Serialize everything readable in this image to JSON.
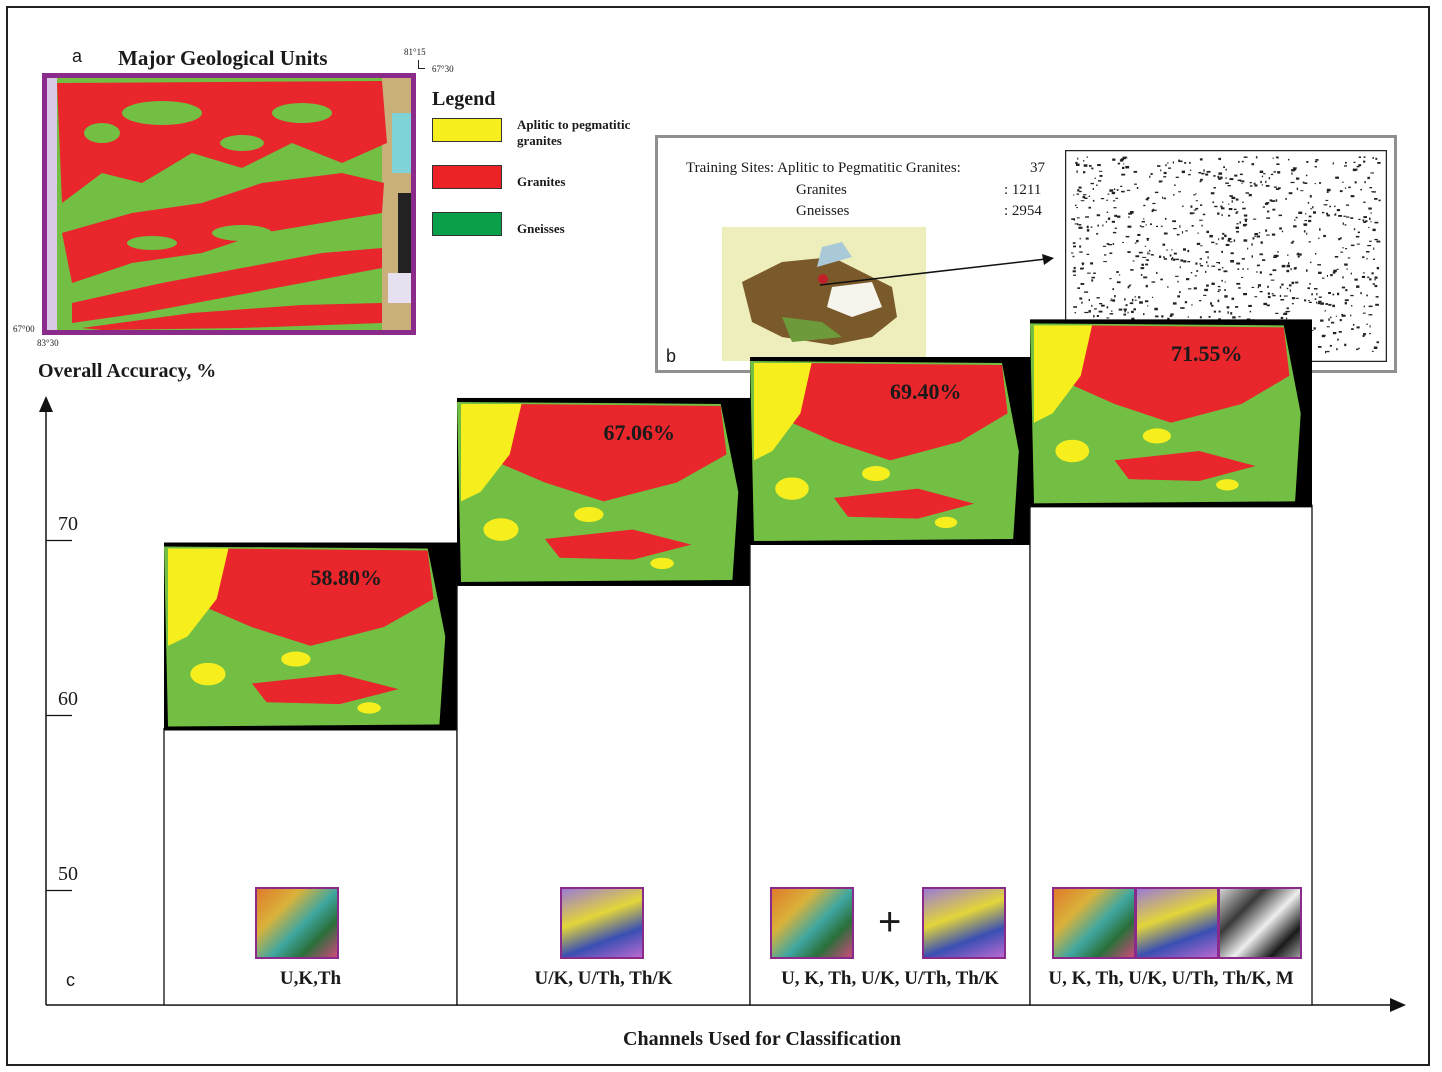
{
  "panel_a": {
    "letter": "a",
    "title": "Major Geological Units",
    "coords": {
      "tr_lon": "81°15",
      "tr_lat": "67°30",
      "bl_lat": "67°00",
      "bl_lon": "83°30"
    },
    "legend_title": "Legend",
    "legend": [
      {
        "label_lines": [
          "Aplitic to pegmatitic",
          "granites"
        ],
        "color": "#f7ee1e"
      },
      {
        "label_lines": [
          "Granites"
        ],
        "color": "#ec2227"
      },
      {
        "label_lines": [
          "Gneisses"
        ],
        "color": "#0aa04a"
      }
    ],
    "colors": {
      "frame": "#8a2a8a",
      "granites": "#e8262b",
      "gneisses": "#73bf44",
      "aplitic": "#f7ee1e"
    }
  },
  "panel_b": {
    "letter": "b",
    "training_title": "Training Sites: Aplitic to Pegmatitic Granites:",
    "rows": [
      {
        "name": "",
        "value": "37"
      },
      {
        "name": "Granites",
        "value": ": 1211"
      },
      {
        "name": "Gneisses",
        "value": ": 2954"
      }
    ]
  },
  "panel_c": {
    "letter": "c",
    "ylabel": "Overall Accuracy, %",
    "xlabel": "Channels Used for Classification",
    "ticks": [
      "70",
      "60",
      "50"
    ]
  },
  "chart_data": {
    "type": "bar",
    "title": "",
    "xlabel": "Channels Used for Classification",
    "ylabel": "Overall Accuracy, %",
    "ylim": [
      43,
      75
    ],
    "yticks": [
      50,
      60,
      70
    ],
    "categories": [
      "U,K,Th",
      "U/K,   U/Th,   Th/K",
      "U, K, Th, U/K, U/Th, Th/K",
      "U, K, Th, U/K, U/Th, Th/K, M"
    ],
    "values": [
      58.8,
      67.06,
      69.4,
      71.55
    ],
    "value_labels": [
      "58.80%",
      "67.06%",
      "69.40%",
      "71.55%"
    ],
    "plus_sign": "+"
  }
}
